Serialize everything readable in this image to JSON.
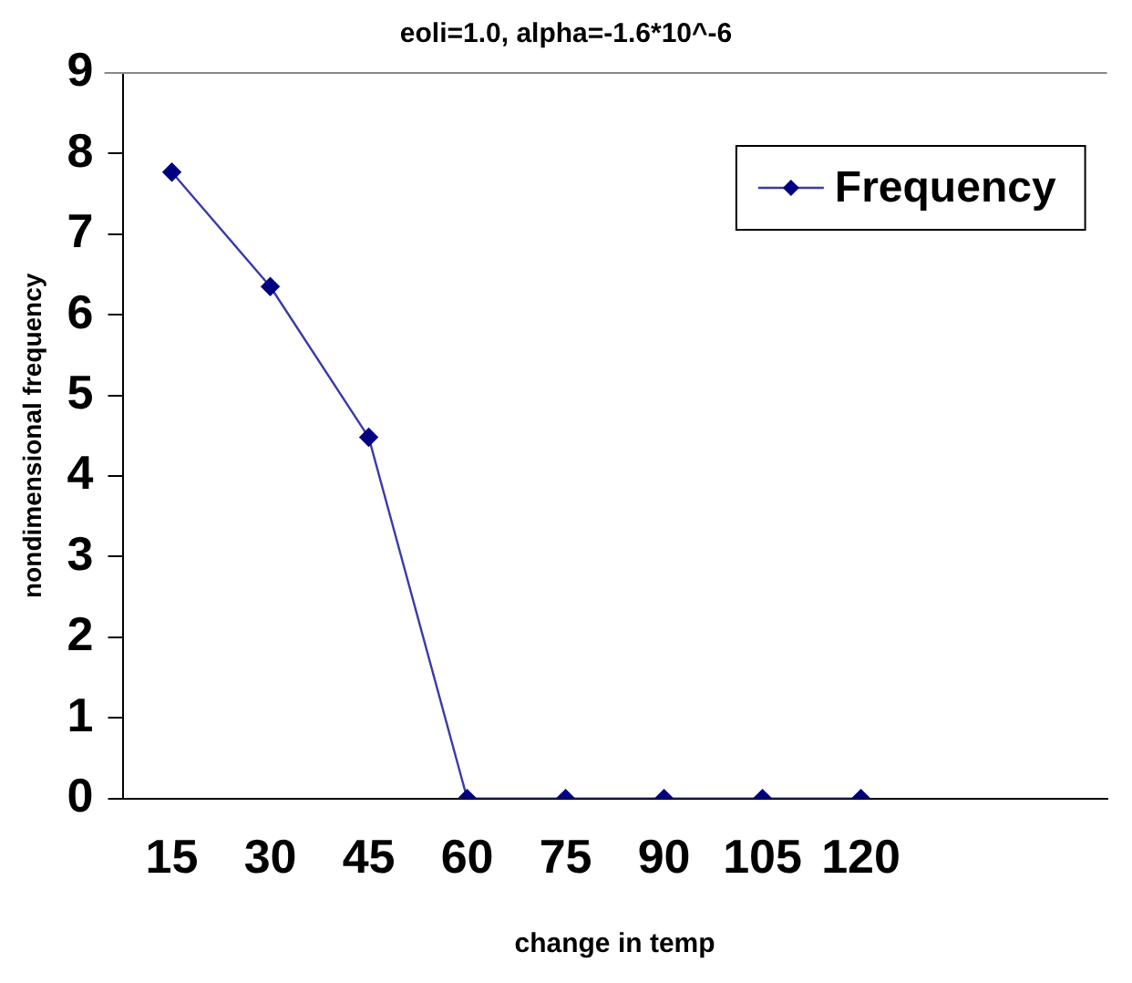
{
  "chart_data": {
    "type": "line",
    "title": "eoli=1.0, alpha=-1.6*10^-6",
    "xlabel": "change in temp",
    "ylabel": "nondimensional frequency",
    "x": [
      15,
      30,
      45,
      60,
      75,
      90,
      105,
      120
    ],
    "series": [
      {
        "name": "Frequency",
        "color": "#000080",
        "values": [
          7.77,
          6.35,
          4.48,
          0,
          0,
          0,
          0,
          0
        ]
      }
    ],
    "xlim": [
      7.5,
      157.5
    ],
    "xticks": [
      15,
      30,
      45,
      60,
      75,
      90,
      105,
      120
    ],
    "ylim": [
      0,
      9
    ],
    "yticks": [
      0,
      1,
      2,
      3,
      4,
      5,
      6,
      7,
      8,
      9
    ],
    "grid": false,
    "legend": "top right",
    "marker": "diamond",
    "line_style": "solid"
  }
}
